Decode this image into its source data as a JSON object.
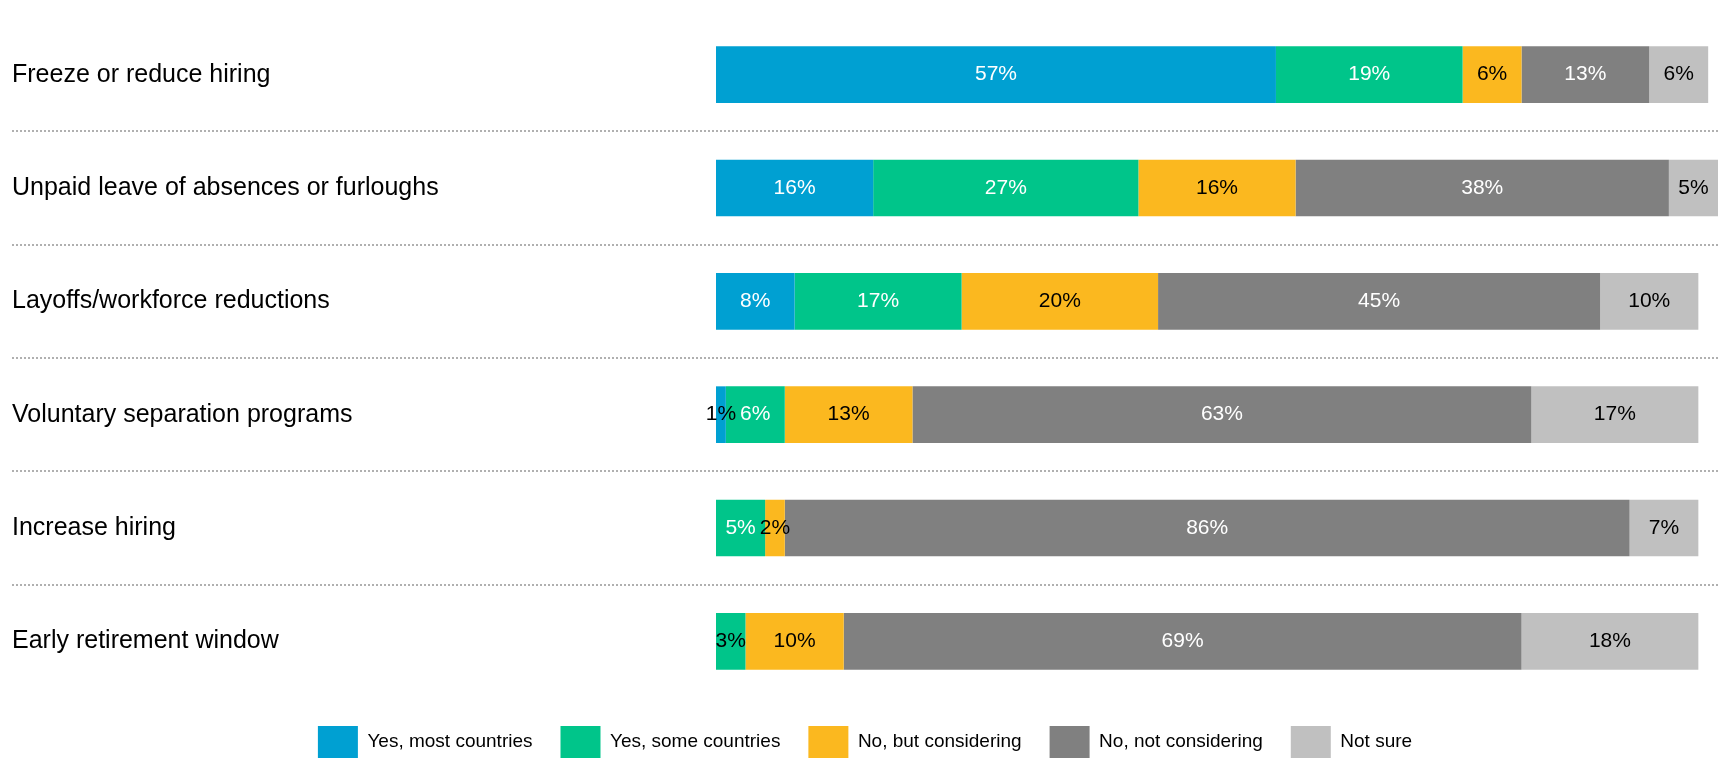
{
  "chart_data": {
    "type": "bar",
    "orientation": "horizontal",
    "stacked": true,
    "legend": "bottom",
    "tick_labels": "y",
    "categories": [
      "Freeze or reduce hiring",
      "Unpaid leave of absences or furloughs",
      "Layoffs/workforce reductions",
      "Voluntary separation programs",
      "Increase hiring",
      "Early retirement window"
    ],
    "series": [
      {
        "name": "Yes, most countries",
        "color": "#00a0d2",
        "values": [
          57,
          16,
          8,
          1,
          0,
          0
        ],
        "value_labels": [
          "57%",
          "16%",
          "8%",
          "1%",
          null,
          null
        ]
      },
      {
        "name": "Yes, some countries",
        "color": "#00c58a",
        "values": [
          19,
          27,
          17,
          6,
          5,
          3
        ],
        "value_labels": [
          "19%",
          "27%",
          "17%",
          "6%",
          "5%",
          "3%"
        ]
      },
      {
        "name": "No, but considering",
        "color": "#fbb81f",
        "values": [
          6,
          16,
          20,
          13,
          2,
          10
        ],
        "value_labels": [
          "6%",
          "16%",
          "20%",
          "13%",
          "2%",
          "10%"
        ]
      },
      {
        "name": "No, not considering",
        "color": "#808080",
        "values": [
          13,
          38,
          45,
          63,
          86,
          69
        ],
        "value_labels": [
          "13%",
          "38%",
          "45%",
          "63%",
          "86%",
          "69%"
        ]
      },
      {
        "name": "Not sure",
        "color": "#c0c0c0",
        "values": [
          6,
          5,
          10,
          17,
          7,
          18
        ],
        "value_labels": [
          "6%",
          "5%",
          "10%",
          "17%",
          "7%",
          "18%"
        ]
      }
    ]
  }
}
